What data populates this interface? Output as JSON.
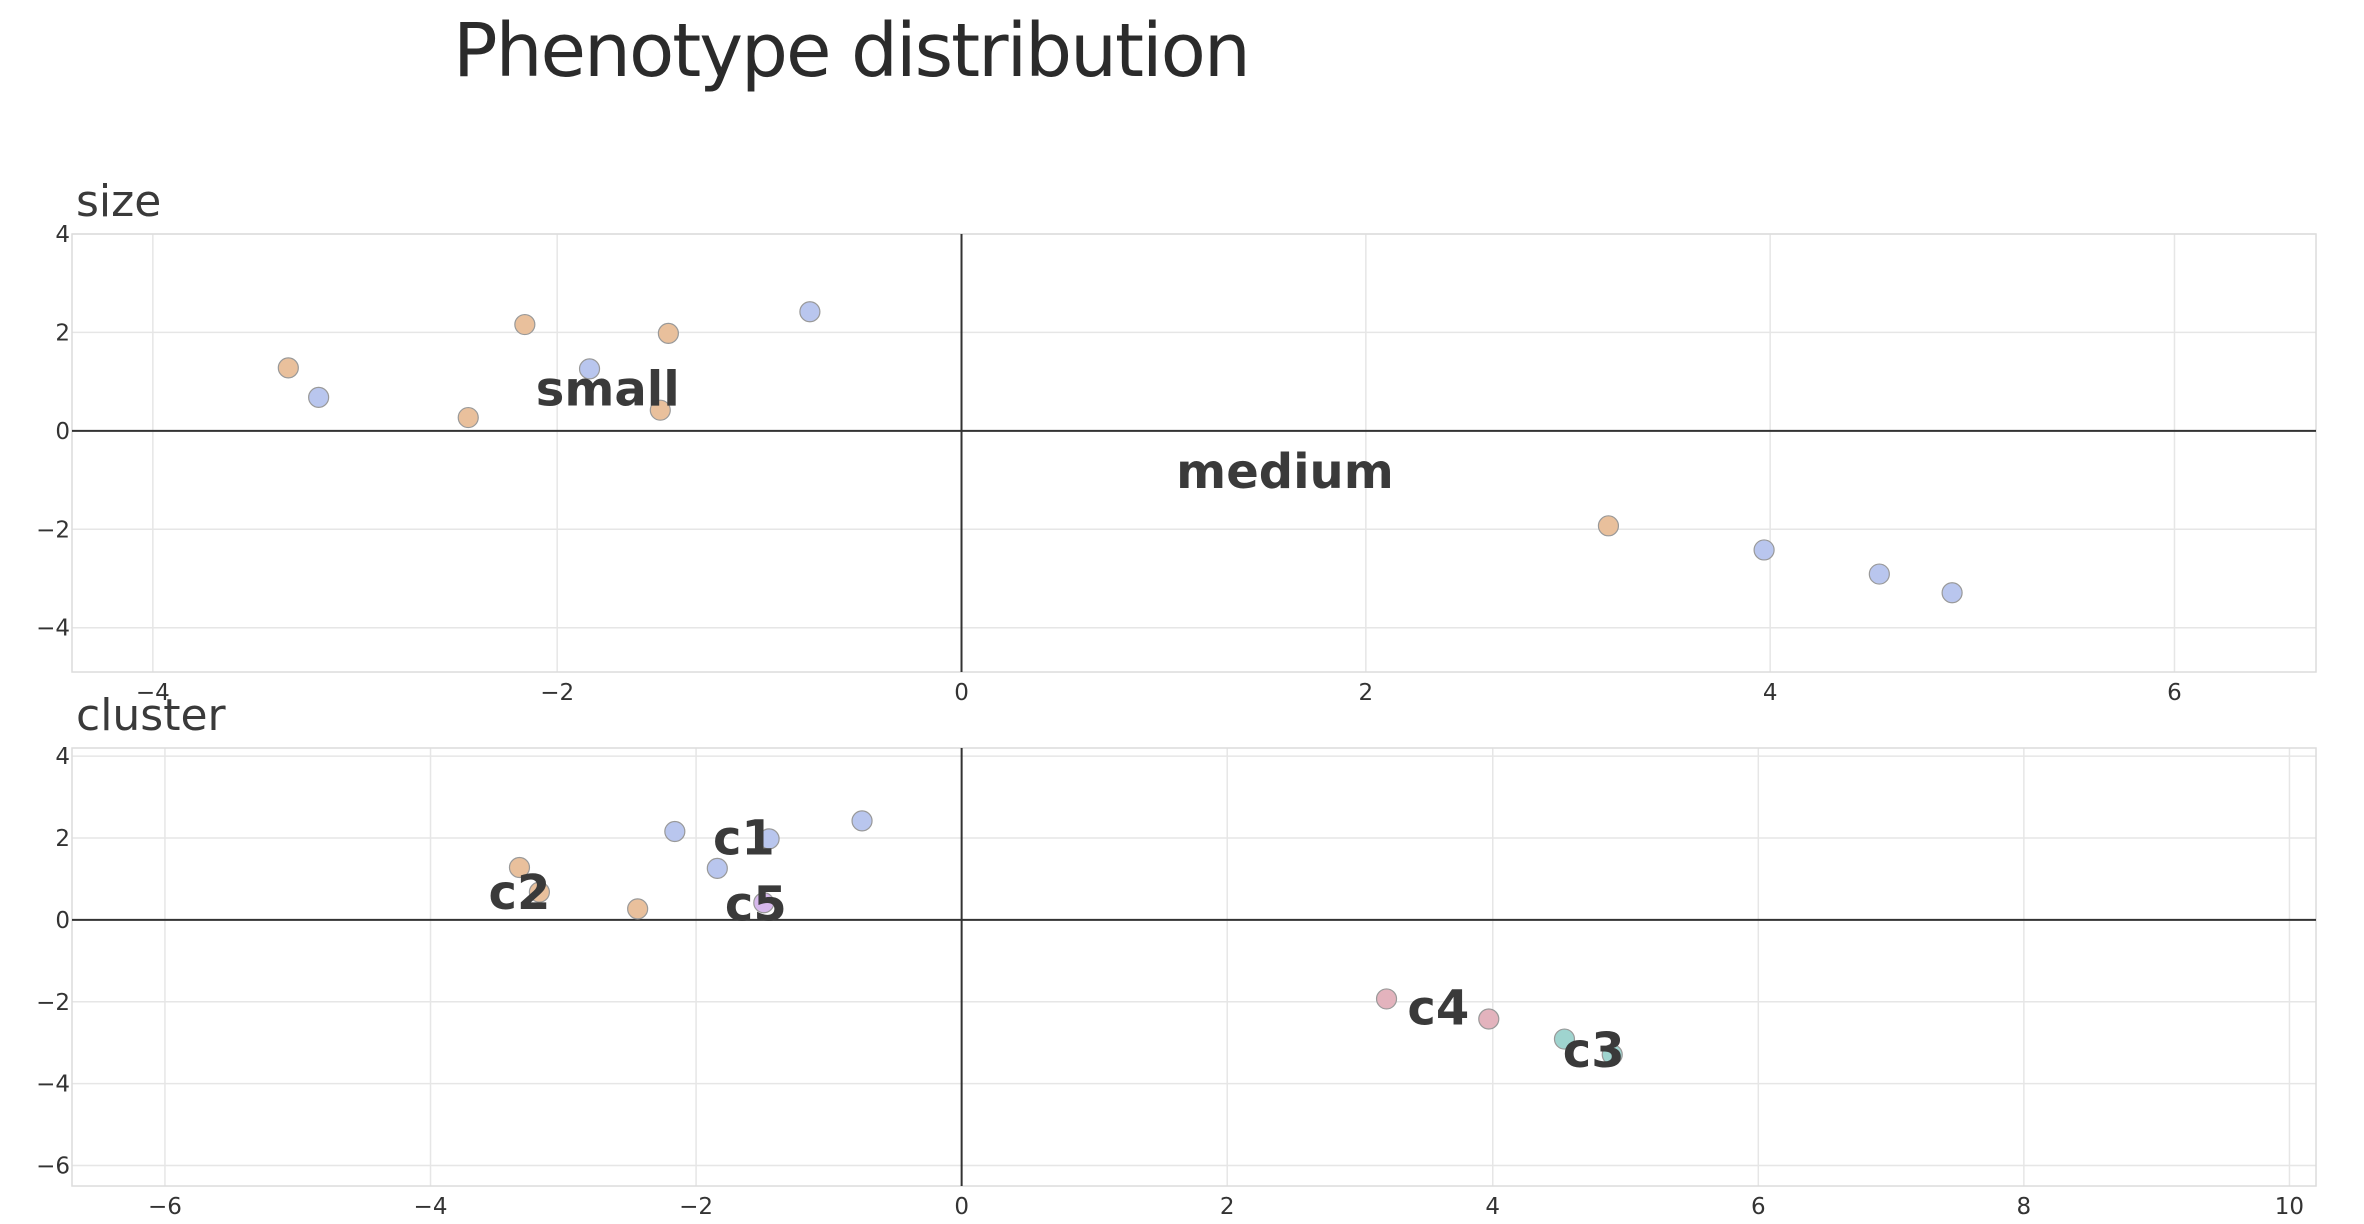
{
  "title": "Phenotype distribution",
  "colors": {
    "orange": "#e9c09c",
    "blue": "#b9c6ee",
    "pink": "#e3b3bd",
    "teal": "#9fd4cf",
    "purple": "#d6b8ec"
  },
  "chart_data": [
    {
      "type": "scatter",
      "title": "size",
      "xlim": [
        -4.4,
        6.7
      ],
      "ylim": [
        -4.9,
        4.0
      ],
      "xticks": [
        -4,
        -2,
        0,
        2,
        4,
        6
      ],
      "yticks": [
        4,
        2,
        0,
        -2,
        -4
      ],
      "grid": true,
      "points": [
        {
          "x": -3.33,
          "y": 1.28,
          "color": "orange"
        },
        {
          "x": -3.18,
          "y": 0.68,
          "color": "blue"
        },
        {
          "x": -2.44,
          "y": 0.27,
          "color": "orange"
        },
        {
          "x": -2.16,
          "y": 2.16,
          "color": "orange"
        },
        {
          "x": -1.84,
          "y": 1.26,
          "color": "blue"
        },
        {
          "x": -1.45,
          "y": 1.98,
          "color": "orange"
        },
        {
          "x": -1.49,
          "y": 0.42,
          "color": "orange"
        },
        {
          "x": -0.75,
          "y": 2.42,
          "color": "blue"
        },
        {
          "x": 3.2,
          "y": -1.93,
          "color": "orange"
        },
        {
          "x": 3.97,
          "y": -2.42,
          "color": "blue"
        },
        {
          "x": 4.54,
          "y": -2.91,
          "color": "blue"
        },
        {
          "x": 4.9,
          "y": -3.29,
          "color": "blue"
        }
      ],
      "annotations": [
        {
          "text": "small",
          "x": -1.75,
          "y": 0.78
        },
        {
          "text": "medium",
          "x": 1.6,
          "y": -0.9
        }
      ]
    },
    {
      "type": "scatter",
      "title": "cluster",
      "xlim": [
        -6.7,
        10.2
      ],
      "ylim": [
        -6.5,
        4.2
      ],
      "xticks": [
        -6,
        -4,
        -2,
        0,
        2,
        4,
        6,
        8,
        10
      ],
      "yticks": [
        4,
        2,
        0,
        -2,
        -4,
        -6
      ],
      "grid": true,
      "points": [
        {
          "x": -3.33,
          "y": 1.28,
          "color": "orange"
        },
        {
          "x": -3.18,
          "y": 0.68,
          "color": "orange"
        },
        {
          "x": -2.44,
          "y": 0.27,
          "color": "orange"
        },
        {
          "x": -2.16,
          "y": 2.16,
          "color": "blue"
        },
        {
          "x": -1.45,
          "y": 1.98,
          "color": "blue"
        },
        {
          "x": -1.84,
          "y": 1.26,
          "color": "blue"
        },
        {
          "x": -0.75,
          "y": 2.42,
          "color": "blue"
        },
        {
          "x": -1.49,
          "y": 0.42,
          "color": "purple"
        },
        {
          "x": 3.2,
          "y": -1.93,
          "color": "pink"
        },
        {
          "x": 3.97,
          "y": -2.42,
          "color": "pink"
        },
        {
          "x": 4.54,
          "y": -2.91,
          "color": "teal"
        },
        {
          "x": 4.9,
          "y": -3.29,
          "color": "teal"
        }
      ],
      "annotations": [
        {
          "text": "c1",
          "x": -1.64,
          "y": 1.92
        },
        {
          "text": "c2",
          "x": -3.33,
          "y": 0.58
        },
        {
          "text": "c5",
          "x": -1.55,
          "y": 0.3
        },
        {
          "text": "c4",
          "x": 3.59,
          "y": -2.24
        },
        {
          "text": "c3",
          "x": 4.76,
          "y": -3.27
        }
      ]
    }
  ]
}
